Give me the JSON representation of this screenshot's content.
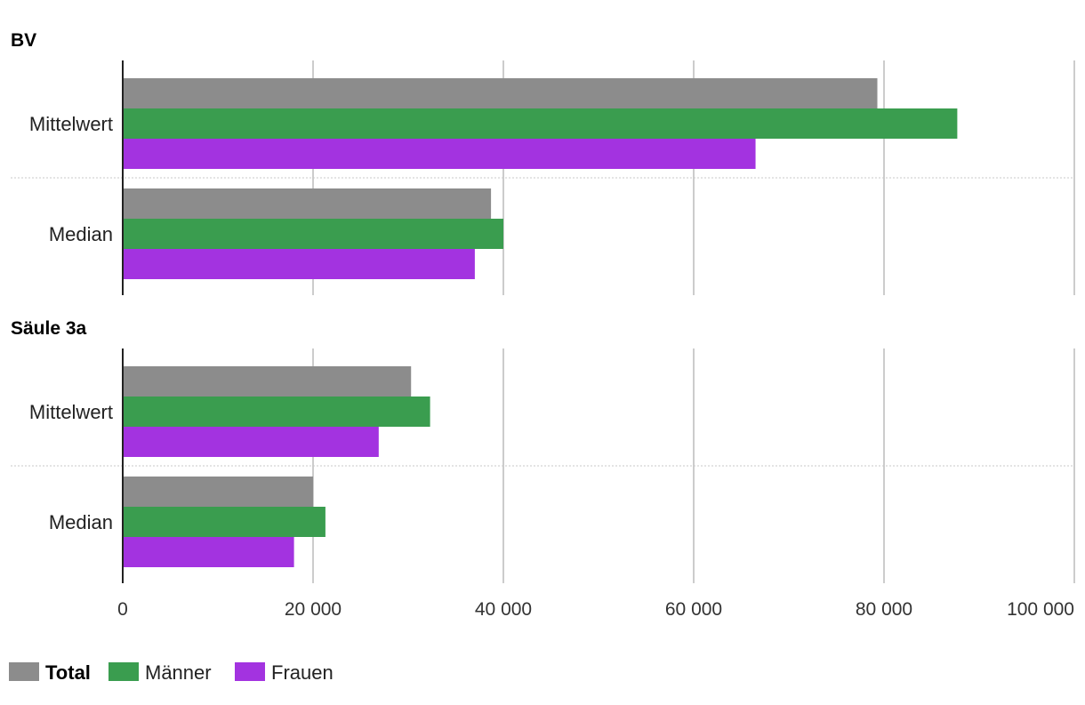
{
  "chart_data": {
    "type": "bar",
    "orientation": "horizontal",
    "xlim": [
      0,
      100000
    ],
    "x_ticks": [
      0,
      20000,
      40000,
      60000,
      80000,
      100000
    ],
    "x_tick_labels": [
      "0",
      "20 000",
      "40 000",
      "60 000",
      "80 000",
      "100 000"
    ],
    "grid": true,
    "legend_position": "bottom-left",
    "series": [
      {
        "name": "Total",
        "color": "#8c8c8c",
        "bold": true
      },
      {
        "name": "Männer",
        "color": "#3a9d4f",
        "bold": false
      },
      {
        "name": "Frauen",
        "color": "#a333e0",
        "bold": false
      }
    ],
    "panels": [
      {
        "title": "BV",
        "categories": [
          "Mittelwert",
          "Median"
        ],
        "values": [
          [
            79300,
            87700,
            66500
          ],
          [
            38700,
            40000,
            37000
          ]
        ]
      },
      {
        "title": "Säule 3a",
        "categories": [
          "Mittelwert",
          "Median"
        ],
        "values": [
          [
            30300,
            32300,
            26900
          ],
          [
            20000,
            21300,
            18000
          ]
        ]
      }
    ]
  }
}
